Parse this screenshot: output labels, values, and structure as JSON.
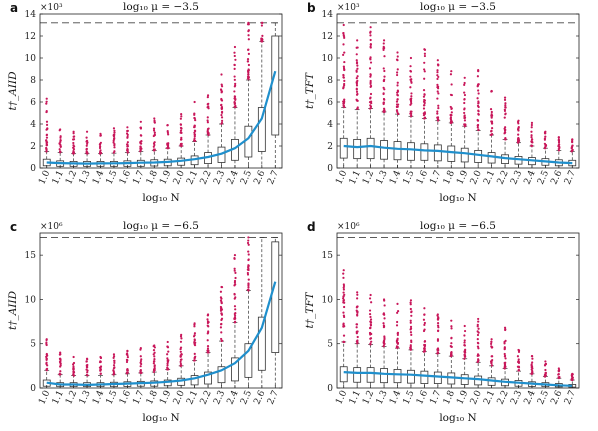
{
  "colors": {
    "outlier": "#c8175a",
    "median_line": "#1f8fcc",
    "box": "#333333",
    "dashed": "#444444"
  },
  "chart_data": [
    {
      "panel": "a",
      "type": "box",
      "title": "log₁₀ μ = −3.5",
      "xlabel": "log₁₀ N",
      "ylabel": "t†_AIID",
      "multiplier": "×10³",
      "categories": [
        "1.0",
        "1.1",
        "1.2",
        "1.3",
        "1.4",
        "1.5",
        "1.6",
        "1.7",
        "1.8",
        "1.9",
        "2.0",
        "2.1",
        "2.2",
        "2.3",
        "2.4",
        "2.5",
        "2.6",
        "2.7"
      ],
      "ylim": [
        0,
        14
      ],
      "yticks": [
        0,
        2,
        4,
        6,
        8,
        10,
        12,
        14
      ],
      "cap": 13.2,
      "mean": [
        0.5,
        0.45,
        0.42,
        0.4,
        0.42,
        0.43,
        0.45,
        0.48,
        0.5,
        0.55,
        0.65,
        0.8,
        1.0,
        1.3,
        1.8,
        2.7,
        4.5,
        8.8
      ],
      "boxes": [
        {
          "q1": 0.2,
          "q3": 0.8,
          "whisker": 1.5,
          "max": 6.3
        },
        {
          "q1": 0.15,
          "q3": 0.65,
          "whisker": 1.4,
          "max": 3.5
        },
        {
          "q1": 0.15,
          "q3": 0.6,
          "whisker": 1.3,
          "max": 3.3
        },
        {
          "q1": 0.15,
          "q3": 0.6,
          "whisker": 1.3,
          "max": 3.3
        },
        {
          "q1": 0.15,
          "q3": 0.6,
          "whisker": 1.3,
          "max": 3.1
        },
        {
          "q1": 0.15,
          "q3": 0.6,
          "whisker": 1.35,
          "max": 3.6
        },
        {
          "q1": 0.15,
          "q3": 0.65,
          "whisker": 1.4,
          "max": 3.7
        },
        {
          "q1": 0.15,
          "q3": 0.7,
          "whisker": 1.5,
          "max": 4.2
        },
        {
          "q1": 0.18,
          "q3": 0.75,
          "whisker": 1.6,
          "max": 4.5
        },
        {
          "q1": 0.2,
          "q3": 0.8,
          "whisker": 1.8,
          "max": 3.9
        },
        {
          "q1": 0.25,
          "q3": 0.9,
          "whisker": 2.0,
          "max": 4.9
        },
        {
          "q1": 0.3,
          "q3": 1.1,
          "whisker": 2.4,
          "max": 6.0
        },
        {
          "q1": 0.4,
          "q3": 1.4,
          "whisker": 3.0,
          "max": 6.6
        },
        {
          "q1": 0.5,
          "q3": 1.9,
          "whisker": 4.0,
          "max": 8.5
        },
        {
          "q1": 0.7,
          "q3": 2.6,
          "whisker": 5.5,
          "max": 11.0
        },
        {
          "q1": 1.0,
          "q3": 3.8,
          "whisker": 8.0,
          "max": 13.2
        },
        {
          "q1": 1.5,
          "q3": 5.5,
          "whisker": 11.5,
          "max": 13.2
        },
        {
          "q1": 3.0,
          "q3": 12.0,
          "whisker": 13.2,
          "max": 13.2
        }
      ]
    },
    {
      "panel": "b",
      "type": "box",
      "title": "log₁₀ μ = −3.5",
      "xlabel": "log₁₀ N",
      "ylabel": "t†_TFT",
      "multiplier": "×10³",
      "categories": [
        "1.0",
        "1.1",
        "1.2",
        "1.3",
        "1.4",
        "1.5",
        "1.6",
        "1.7",
        "1.8",
        "1.9",
        "2.0",
        "2.1",
        "2.2",
        "2.3",
        "2.4",
        "2.5",
        "2.6",
        "2.7"
      ],
      "ylim": [
        0,
        14
      ],
      "yticks": [
        0,
        2,
        4,
        6,
        8,
        10,
        12,
        14
      ],
      "cap": 13.2,
      "mean": [
        2.0,
        1.9,
        2.0,
        1.85,
        1.75,
        1.7,
        1.6,
        1.55,
        1.45,
        1.35,
        1.2,
        1.05,
        0.9,
        0.8,
        0.7,
        0.6,
        0.5,
        0.45
      ],
      "boxes": [
        {
          "q1": 0.9,
          "q3": 2.7,
          "whisker": 5.5,
          "max": 13.0
        },
        {
          "q1": 0.85,
          "q3": 2.6,
          "whisker": 5.3,
          "max": 11.6
        },
        {
          "q1": 0.85,
          "q3": 2.7,
          "whisker": 5.4,
          "max": 12.8
        },
        {
          "q1": 0.8,
          "q3": 2.5,
          "whisker": 5.1,
          "max": 11.6
        },
        {
          "q1": 0.75,
          "q3": 2.4,
          "whisker": 4.9,
          "max": 10.5
        },
        {
          "q1": 0.7,
          "q3": 2.3,
          "whisker": 4.7,
          "max": 10.0
        },
        {
          "q1": 0.7,
          "q3": 2.2,
          "whisker": 4.5,
          "max": 10.8
        },
        {
          "q1": 0.65,
          "q3": 2.1,
          "whisker": 4.3,
          "max": 9.8
        },
        {
          "q1": 0.6,
          "q3": 2.0,
          "whisker": 4.1,
          "max": 8.8
        },
        {
          "q1": 0.55,
          "q3": 1.8,
          "whisker": 3.8,
          "max": 8.2
        },
        {
          "q1": 0.5,
          "q3": 1.6,
          "whisker": 3.4,
          "max": 8.9
        },
        {
          "q1": 0.45,
          "q3": 1.4,
          "whisker": 3.0,
          "max": 7.0
        },
        {
          "q1": 0.4,
          "q3": 1.2,
          "whisker": 2.6,
          "max": 6.4
        },
        {
          "q1": 0.35,
          "q3": 1.05,
          "whisker": 2.3,
          "max": 4.3
        },
        {
          "q1": 0.3,
          "q3": 0.95,
          "whisker": 2.0,
          "max": 4.1
        },
        {
          "q1": 0.25,
          "q3": 0.85,
          "whisker": 1.8,
          "max": 3.3
        },
        {
          "q1": 0.2,
          "q3": 0.75,
          "whisker": 1.6,
          "max": 2.8
        },
        {
          "q1": 0.2,
          "q3": 0.7,
          "whisker": 1.5,
          "max": 2.6
        }
      ]
    },
    {
      "panel": "c",
      "type": "box",
      "title": "log₁₀ μ = −6.5",
      "xlabel": "log₁₀ N",
      "ylabel": "t†_AIID",
      "multiplier": "×10⁶",
      "categories": [
        "1.0",
        "1.1",
        "1.2",
        "1.3",
        "1.4",
        "1.5",
        "1.6",
        "1.7",
        "1.8",
        "1.9",
        "2.0",
        "2.1",
        "2.2",
        "2.3",
        "2.4",
        "2.5",
        "2.6",
        "2.7"
      ],
      "ylim": [
        0,
        17.5
      ],
      "yticks": [
        0,
        5,
        10,
        15
      ],
      "cap": 17.0,
      "mean": [
        0.6,
        0.4,
        0.4,
        0.35,
        0.4,
        0.45,
        0.5,
        0.55,
        0.6,
        0.7,
        0.85,
        1.1,
        1.5,
        2.0,
        2.8,
        4.2,
        6.8,
        12.0
      ],
      "boxes": [
        {
          "q1": 0.2,
          "q3": 0.9,
          "whisker": 2.0,
          "max": 5.5
        },
        {
          "q1": 0.15,
          "q3": 0.6,
          "whisker": 1.5,
          "max": 4.0
        },
        {
          "q1": 0.15,
          "q3": 0.6,
          "whisker": 1.4,
          "max": 3.5
        },
        {
          "q1": 0.15,
          "q3": 0.6,
          "whisker": 1.4,
          "max": 3.3
        },
        {
          "q1": 0.15,
          "q3": 0.6,
          "whisker": 1.4,
          "max": 3.5
        },
        {
          "q1": 0.15,
          "q3": 0.65,
          "whisker": 1.5,
          "max": 3.8
        },
        {
          "q1": 0.18,
          "q3": 0.7,
          "whisker": 1.6,
          "max": 4.2
        },
        {
          "q1": 0.2,
          "q3": 0.75,
          "whisker": 1.7,
          "max": 4.5
        },
        {
          "q1": 0.2,
          "q3": 0.8,
          "whisker": 1.8,
          "max": 4.8
        },
        {
          "q1": 0.25,
          "q3": 0.9,
          "whisker": 2.1,
          "max": 5.2
        },
        {
          "q1": 0.3,
          "q3": 1.1,
          "whisker": 2.5,
          "max": 6.0
        },
        {
          "q1": 0.35,
          "q3": 1.4,
          "whisker": 3.1,
          "max": 7.3
        },
        {
          "q1": 0.45,
          "q3": 1.8,
          "whisker": 4.0,
          "max": 8.3
        },
        {
          "q1": 0.6,
          "q3": 2.4,
          "whisker": 5.3,
          "max": 11.4
        },
        {
          "q1": 0.8,
          "q3": 3.4,
          "whisker": 7.4,
          "max": 15.0
        },
        {
          "q1": 1.2,
          "q3": 5.0,
          "whisker": 11.0,
          "max": 17.0
        },
        {
          "q1": 2.0,
          "q3": 8.0,
          "whisker": 17.0,
          "max": 17.0
        },
        {
          "q1": 4.0,
          "q3": 16.5,
          "whisker": 17.0,
          "max": 17.0
        }
      ]
    },
    {
      "panel": "d",
      "type": "box",
      "title": "log₁₀ μ = −6.5",
      "xlabel": "log₁₀ N",
      "ylabel": "t†_TFT",
      "multiplier": "×10⁶",
      "categories": [
        "1.0",
        "1.1",
        "1.2",
        "1.3",
        "1.4",
        "1.5",
        "1.6",
        "1.7",
        "1.8",
        "1.9",
        "2.0",
        "2.1",
        "2.2",
        "2.3",
        "2.4",
        "2.5",
        "2.6",
        "2.7"
      ],
      "ylim": [
        0,
        17.5
      ],
      "yticks": [
        0,
        5,
        10,
        15
      ],
      "cap": 17.0,
      "mean": [
        1.8,
        1.7,
        1.7,
        1.6,
        1.55,
        1.5,
        1.4,
        1.3,
        1.2,
        1.1,
        1.0,
        0.85,
        0.7,
        0.6,
        0.5,
        0.4,
        0.3,
        0.25
      ],
      "boxes": [
        {
          "q1": 0.7,
          "q3": 2.4,
          "whisker": 5.2,
          "max": 13.3
        },
        {
          "q1": 0.65,
          "q3": 2.3,
          "whisker": 5.0,
          "max": 10.8
        },
        {
          "q1": 0.65,
          "q3": 2.3,
          "whisker": 4.9,
          "max": 10.5
        },
        {
          "q1": 0.6,
          "q3": 2.2,
          "whisker": 4.7,
          "max": 10.0
        },
        {
          "q1": 0.6,
          "q3": 2.1,
          "whisker": 4.5,
          "max": 9.5
        },
        {
          "q1": 0.55,
          "q3": 2.0,
          "whisker": 4.3,
          "max": 9.9
        },
        {
          "q1": 0.5,
          "q3": 1.9,
          "whisker": 4.1,
          "max": 9.0
        },
        {
          "q1": 0.5,
          "q3": 1.8,
          "whisker": 3.9,
          "max": 8.3
        },
        {
          "q1": 0.45,
          "q3": 1.7,
          "whisker": 3.6,
          "max": 7.6
        },
        {
          "q1": 0.4,
          "q3": 1.5,
          "whisker": 3.3,
          "max": 7.0
        },
        {
          "q1": 0.35,
          "q3": 1.35,
          "whisker": 2.9,
          "max": 7.8
        },
        {
          "q1": 0.3,
          "q3": 1.15,
          "whisker": 2.5,
          "max": 5.5
        },
        {
          "q1": 0.25,
          "q3": 1.0,
          "whisker": 2.2,
          "max": 6.8
        },
        {
          "q1": 0.2,
          "q3": 0.85,
          "whisker": 1.9,
          "max": 4.3
        },
        {
          "q1": 0.18,
          "q3": 0.7,
          "whisker": 1.6,
          "max": 3.6
        },
        {
          "q1": 0.15,
          "q3": 0.6,
          "whisker": 1.3,
          "max": 3.0
        },
        {
          "q1": 0.12,
          "q3": 0.5,
          "whisker": 1.1,
          "max": 2.2
        },
        {
          "q1": 0.1,
          "q3": 0.4,
          "whisker": 0.9,
          "max": 1.6
        }
      ]
    }
  ]
}
